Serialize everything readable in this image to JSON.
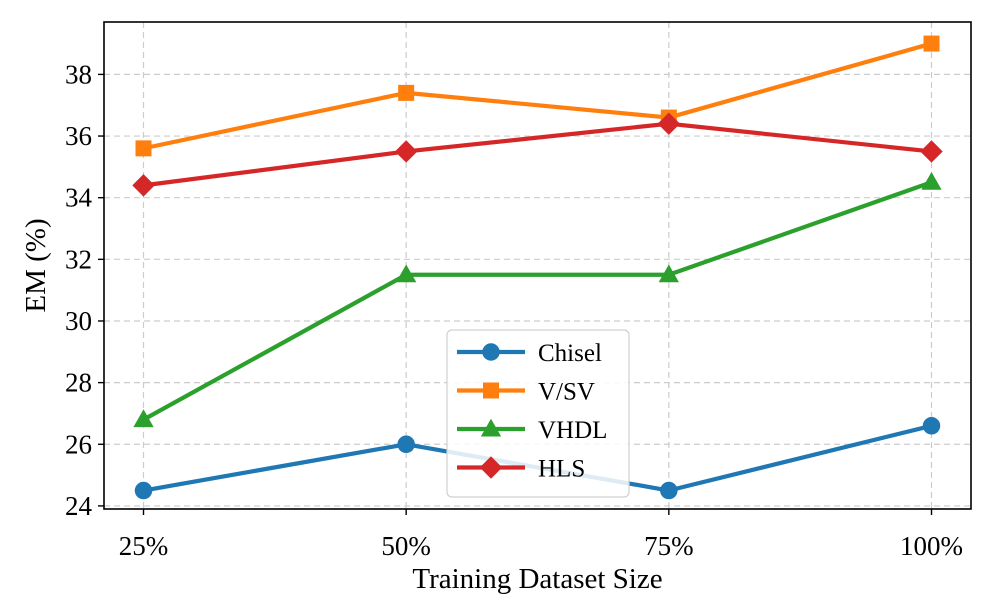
{
  "chart_data": {
    "type": "line",
    "title": "",
    "xlabel": "Training Dataset Size",
    "ylabel": "EM (%)",
    "categories": [
      "25%",
      "50%",
      "75%",
      "100%"
    ],
    "ylim": [
      23.9,
      39.7
    ],
    "yticks": [
      24,
      26,
      28,
      30,
      32,
      34,
      36,
      38
    ],
    "ytick_labels": [
      "24",
      "26",
      "28",
      "30",
      "32",
      "34",
      "36",
      "38"
    ],
    "grid": true,
    "legend_position": "lower-center",
    "series": [
      {
        "name": "Chisel",
        "marker": "circle",
        "color": "#1f77b4",
        "values": [
          24.5,
          26.0,
          24.5,
          26.6
        ]
      },
      {
        "name": "V/SV",
        "marker": "square",
        "color": "#ff7f0e",
        "values": [
          35.6,
          37.4,
          36.6,
          39.0
        ]
      },
      {
        "name": "VHDL",
        "marker": "triangle",
        "color": "#2ca02c",
        "values": [
          26.8,
          31.5,
          31.5,
          34.5
        ]
      },
      {
        "name": "HLS",
        "marker": "diamond",
        "color": "#d62728",
        "values": [
          34.4,
          35.5,
          36.4,
          35.5
        ]
      }
    ]
  }
}
